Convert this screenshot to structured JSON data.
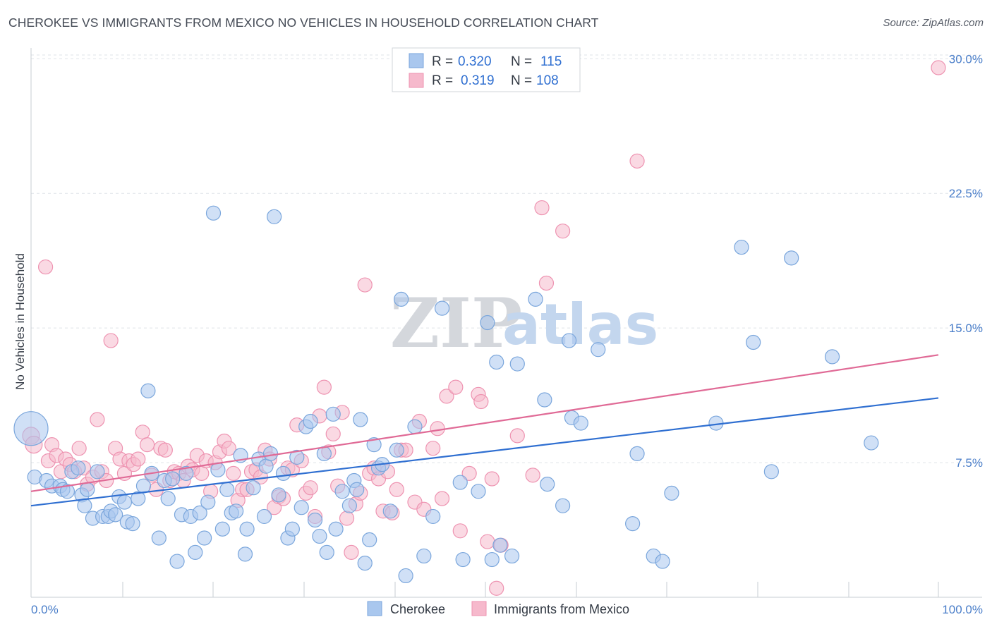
{
  "title": "CHEROKEE VS IMMIGRANTS FROM MEXICO NO VEHICLES IN HOUSEHOLD CORRELATION CHART",
  "source": "Source: ZipAtlas.com",
  "watermark": {
    "zip": "ZIP",
    "atlas": "atlas"
  },
  "legend": {
    "r_label": "R =",
    "n_label": "N =",
    "rows": [
      {
        "series": "Cherokee",
        "r": "0.320",
        "n": "115"
      },
      {
        "series": "Immigrants from Mexico",
        "r": "0.319",
        "n": "108"
      }
    ]
  },
  "colors": {
    "cherokee_fill": "#a9c7ee",
    "cherokee_stroke": "#7aa6dc",
    "cherokee_line": "#2f6fd1",
    "mexico_fill": "#f6b9cc",
    "mexico_stroke": "#ee93b1",
    "mexico_line": "#e06a96",
    "grid": "#dfe3e8",
    "tick_text": "#4a7ec9"
  },
  "chart_data": {
    "type": "scatter",
    "title": "CHEROKEE VS IMMIGRANTS FROM MEXICO NO VEHICLES IN HOUSEHOLD CORRELATION CHART",
    "xlabel": "",
    "ylabel": "No Vehicles in Household",
    "xlim": [
      0,
      100
    ],
    "ylim": [
      0,
      30.6
    ],
    "x_tick_labels": [
      "0.0%",
      "100.0%"
    ],
    "y_ticks": [
      {
        "value": 7.5,
        "label": "7.5%"
      },
      {
        "value": 15.0,
        "label": "15.0%"
      },
      {
        "value": 22.5,
        "label": "22.5%"
      },
      {
        "value": 30.0,
        "label": "30.0%"
      }
    ],
    "grid": "horizontal dashed",
    "legend_position": "top-center",
    "series": [
      {
        "name": "Cherokee",
        "trend": {
          "x": [
            0,
            100
          ],
          "y": [
            5.1,
            11.1
          ]
        },
        "points": [
          [
            0,
            9.4,
            24
          ],
          [
            0.4,
            6.7,
            10
          ],
          [
            1.7,
            6.5,
            10
          ],
          [
            2.3,
            6.2,
            10
          ],
          [
            3.2,
            6.2,
            10
          ],
          [
            3.5,
            6.0,
            10
          ],
          [
            4,
            5.9,
            10
          ],
          [
            4.5,
            7.0,
            10
          ],
          [
            5.2,
            7.2,
            10
          ],
          [
            5.6,
            5.7,
            10
          ],
          [
            5.9,
            5.1,
            10
          ],
          [
            6.2,
            6.0,
            10
          ],
          [
            6.8,
            4.4,
            10
          ],
          [
            7.3,
            7.0,
            10
          ],
          [
            7.9,
            4.5,
            10
          ],
          [
            8.5,
            4.5,
            10
          ],
          [
            8.8,
            4.8,
            10
          ],
          [
            9.3,
            4.6,
            10
          ],
          [
            9.7,
            5.6,
            10
          ],
          [
            10.3,
            5.3,
            10
          ],
          [
            10.6,
            4.2,
            10
          ],
          [
            11.2,
            4.1,
            10
          ],
          [
            11.8,
            5.5,
            10
          ],
          [
            12.4,
            6.2,
            10
          ],
          [
            12.9,
            11.5,
            10
          ],
          [
            13.3,
            6.9,
            10
          ],
          [
            14.1,
            3.3,
            10
          ],
          [
            14.7,
            6.5,
            10
          ],
          [
            15.1,
            5.5,
            10
          ],
          [
            15.6,
            6.6,
            10
          ],
          [
            16.1,
            2.0,
            10
          ],
          [
            16.6,
            4.6,
            10
          ],
          [
            17.1,
            6.9,
            10
          ],
          [
            17.6,
            4.5,
            10
          ],
          [
            18.1,
            2.5,
            10
          ],
          [
            18.6,
            4.7,
            10
          ],
          [
            19.1,
            3.3,
            10
          ],
          [
            19.5,
            5.3,
            10
          ],
          [
            20.1,
            21.4,
            10
          ],
          [
            20.6,
            7.1,
            10
          ],
          [
            21.1,
            3.8,
            10
          ],
          [
            21.6,
            6.0,
            10
          ],
          [
            22.1,
            4.7,
            10
          ],
          [
            22.6,
            4.8,
            10
          ],
          [
            23.1,
            7.9,
            10
          ],
          [
            23.6,
            2.4,
            10
          ],
          [
            23.8,
            3.8,
            10
          ],
          [
            24.5,
            6.1,
            10
          ],
          [
            25.1,
            7.7,
            10
          ],
          [
            25.7,
            4.5,
            10
          ],
          [
            25.9,
            7.3,
            10
          ],
          [
            26.4,
            8.0,
            10
          ],
          [
            26.8,
            21.2,
            10
          ],
          [
            27.3,
            5.7,
            10
          ],
          [
            27.8,
            6.9,
            10
          ],
          [
            28.3,
            3.3,
            10
          ],
          [
            28.8,
            3.8,
            10
          ],
          [
            29.3,
            7.8,
            10
          ],
          [
            29.8,
            5.0,
            10
          ],
          [
            30.3,
            9.5,
            10
          ],
          [
            30.8,
            9.8,
            10
          ],
          [
            31.3,
            4.3,
            10
          ],
          [
            31.8,
            3.4,
            10
          ],
          [
            32.3,
            8.0,
            10
          ],
          [
            32.6,
            2.5,
            10
          ],
          [
            33.3,
            10.2,
            10
          ],
          [
            33.6,
            3.8,
            10
          ],
          [
            34.3,
            5.9,
            10
          ],
          [
            35.1,
            5.1,
            10
          ],
          [
            35.6,
            6.5,
            10
          ],
          [
            35.9,
            6.0,
            10
          ],
          [
            36.3,
            9.9,
            10
          ],
          [
            36.8,
            1.9,
            10
          ],
          [
            37.3,
            3.2,
            10
          ],
          [
            37.8,
            8.5,
            10
          ],
          [
            38.3,
            7.2,
            10
          ],
          [
            38.7,
            7.4,
            10
          ],
          [
            39.6,
            4.8,
            10
          ],
          [
            40.3,
            8.2,
            10
          ],
          [
            40.8,
            16.6,
            10
          ],
          [
            41.3,
            1.2,
            10
          ],
          [
            42.3,
            9.5,
            10
          ],
          [
            43.3,
            2.3,
            10
          ],
          [
            44.3,
            4.5,
            10
          ],
          [
            45.3,
            16.1,
            10
          ],
          [
            47.3,
            6.4,
            10
          ],
          [
            47.6,
            2.1,
            10
          ],
          [
            49.3,
            5.9,
            10
          ],
          [
            50.3,
            15.3,
            10
          ],
          [
            50.8,
            2.1,
            10
          ],
          [
            51.3,
            13.1,
            10
          ],
          [
            51.7,
            2.9,
            10
          ],
          [
            53.0,
            2.3,
            10
          ],
          [
            53.6,
            13.0,
            10
          ],
          [
            55.6,
            16.6,
            10
          ],
          [
            56.6,
            11.0,
            10
          ],
          [
            56.9,
            6.3,
            10
          ],
          [
            58.6,
            5.1,
            10
          ],
          [
            59.3,
            14.3,
            10
          ],
          [
            59.6,
            10.0,
            10
          ],
          [
            60.6,
            9.7,
            10
          ],
          [
            62.5,
            13.8,
            10
          ],
          [
            66.3,
            4.1,
            10
          ],
          [
            66.8,
            8.0,
            10
          ],
          [
            68.6,
            2.3,
            10
          ],
          [
            69.6,
            2.0,
            10
          ],
          [
            70.6,
            5.8,
            10
          ],
          [
            75.5,
            9.7,
            10
          ],
          [
            78.3,
            19.5,
            10
          ],
          [
            79.6,
            14.2,
            10
          ],
          [
            81.6,
            7.0,
            10
          ],
          [
            83.8,
            18.9,
            10
          ],
          [
            88.3,
            13.4,
            10
          ],
          [
            92.6,
            8.6,
            10
          ]
        ]
      },
      {
        "name": "Immigrants from Mexico",
        "trend": {
          "x": [
            0,
            100
          ],
          "y": [
            5.9,
            13.5
          ]
        },
        "points": [
          [
            0,
            9.0,
            12
          ],
          [
            0.3,
            8.5,
            12
          ],
          [
            1.6,
            18.4,
            10
          ],
          [
            1.9,
            7.6,
            10
          ],
          [
            2.3,
            8.5,
            10
          ],
          [
            2.8,
            7.9,
            10
          ],
          [
            3.3,
            7.0,
            10
          ],
          [
            3.8,
            7.7,
            10
          ],
          [
            4.3,
            7.4,
            10
          ],
          [
            4.8,
            7.0,
            10
          ],
          [
            5.3,
            8.3,
            10
          ],
          [
            5.8,
            7.2,
            10
          ],
          [
            6.2,
            6.3,
            10
          ],
          [
            6.8,
            6.7,
            10
          ],
          [
            7.3,
            9.9,
            10
          ],
          [
            7.8,
            7.0,
            10
          ],
          [
            8.3,
            6.5,
            10
          ],
          [
            8.8,
            14.3,
            10
          ],
          [
            9.3,
            8.3,
            10
          ],
          [
            9.8,
            7.7,
            10
          ],
          [
            10.3,
            6.9,
            10
          ],
          [
            10.8,
            7.6,
            10
          ],
          [
            11.3,
            7.4,
            10
          ],
          [
            11.8,
            7.7,
            10
          ],
          [
            12.3,
            9.2,
            10
          ],
          [
            12.8,
            8.5,
            10
          ],
          [
            13.3,
            6.8,
            10
          ],
          [
            13.8,
            6.0,
            10
          ],
          [
            14.3,
            8.3,
            10
          ],
          [
            14.8,
            8.2,
            10
          ],
          [
            15.3,
            6.5,
            10
          ],
          [
            15.8,
            7.0,
            10
          ],
          [
            16.3,
            6.9,
            10
          ],
          [
            16.8,
            6.5,
            10
          ],
          [
            17.3,
            7.3,
            10
          ],
          [
            17.8,
            7.1,
            10
          ],
          [
            18.3,
            7.9,
            10
          ],
          [
            18.8,
            6.9,
            10
          ],
          [
            19.3,
            7.6,
            10
          ],
          [
            19.8,
            5.9,
            10
          ],
          [
            20.3,
            7.5,
            10
          ],
          [
            20.8,
            8.1,
            10
          ],
          [
            21.3,
            8.7,
            10
          ],
          [
            21.8,
            8.3,
            10
          ],
          [
            22.3,
            6.9,
            10
          ],
          [
            22.8,
            5.4,
            10
          ],
          [
            23.3,
            6.0,
            10
          ],
          [
            23.8,
            6.0,
            10
          ],
          [
            24.3,
            7.0,
            10
          ],
          [
            24.8,
            7.1,
            10
          ],
          [
            25.3,
            6.7,
            10
          ],
          [
            25.8,
            8.2,
            10
          ],
          [
            26.3,
            7.7,
            10
          ],
          [
            26.8,
            5.0,
            10
          ],
          [
            27.3,
            5.6,
            10
          ],
          [
            27.8,
            5.5,
            10
          ],
          [
            28.3,
            7.2,
            10
          ],
          [
            28.8,
            7.1,
            10
          ],
          [
            29.3,
            9.6,
            10
          ],
          [
            29.8,
            7.6,
            10
          ],
          [
            30.3,
            5.8,
            10
          ],
          [
            30.8,
            6.1,
            10
          ],
          [
            31.3,
            4.5,
            10
          ],
          [
            31.8,
            10.1,
            10
          ],
          [
            32.3,
            11.7,
            10
          ],
          [
            32.8,
            8.1,
            10
          ],
          [
            33.3,
            9.1,
            10
          ],
          [
            33.8,
            6.2,
            10
          ],
          [
            34.3,
            10.3,
            10
          ],
          [
            34.8,
            4.4,
            10
          ],
          [
            35.3,
            2.5,
            10
          ],
          [
            35.8,
            5.2,
            10
          ],
          [
            36.3,
            5.8,
            10
          ],
          [
            36.8,
            17.4,
            10
          ],
          [
            37.3,
            6.9,
            10
          ],
          [
            37.8,
            7.2,
            10
          ],
          [
            38.3,
            6.6,
            10
          ],
          [
            38.8,
            4.8,
            10
          ],
          [
            39.3,
            7.0,
            10
          ],
          [
            39.8,
            4.7,
            10
          ],
          [
            40.3,
            6.0,
            10
          ],
          [
            40.8,
            8.2,
            10
          ],
          [
            41.3,
            8.2,
            10
          ],
          [
            42.3,
            5.3,
            10
          ],
          [
            42.8,
            9.8,
            10
          ],
          [
            43.3,
            4.9,
            10
          ],
          [
            44.3,
            8.3,
            10
          ],
          [
            44.8,
            9.4,
            10
          ],
          [
            45.3,
            5.5,
            10
          ],
          [
            45.8,
            11.2,
            10
          ],
          [
            46.8,
            11.7,
            10
          ],
          [
            47.3,
            3.7,
            10
          ],
          [
            48.3,
            6.9,
            10
          ],
          [
            49.3,
            11.3,
            10
          ],
          [
            49.6,
            10.9,
            10
          ],
          [
            50.3,
            3.1,
            10
          ],
          [
            50.8,
            6.6,
            10
          ],
          [
            51.3,
            0.5,
            10
          ],
          [
            51.8,
            2.9,
            10
          ],
          [
            53.6,
            9.0,
            10
          ],
          [
            55.3,
            6.8,
            10
          ],
          [
            56.3,
            21.7,
            10
          ],
          [
            56.8,
            17.5,
            10
          ],
          [
            58.6,
            20.4,
            10
          ],
          [
            66.8,
            24.3,
            10
          ],
          [
            100,
            29.5,
            10
          ]
        ]
      }
    ]
  }
}
